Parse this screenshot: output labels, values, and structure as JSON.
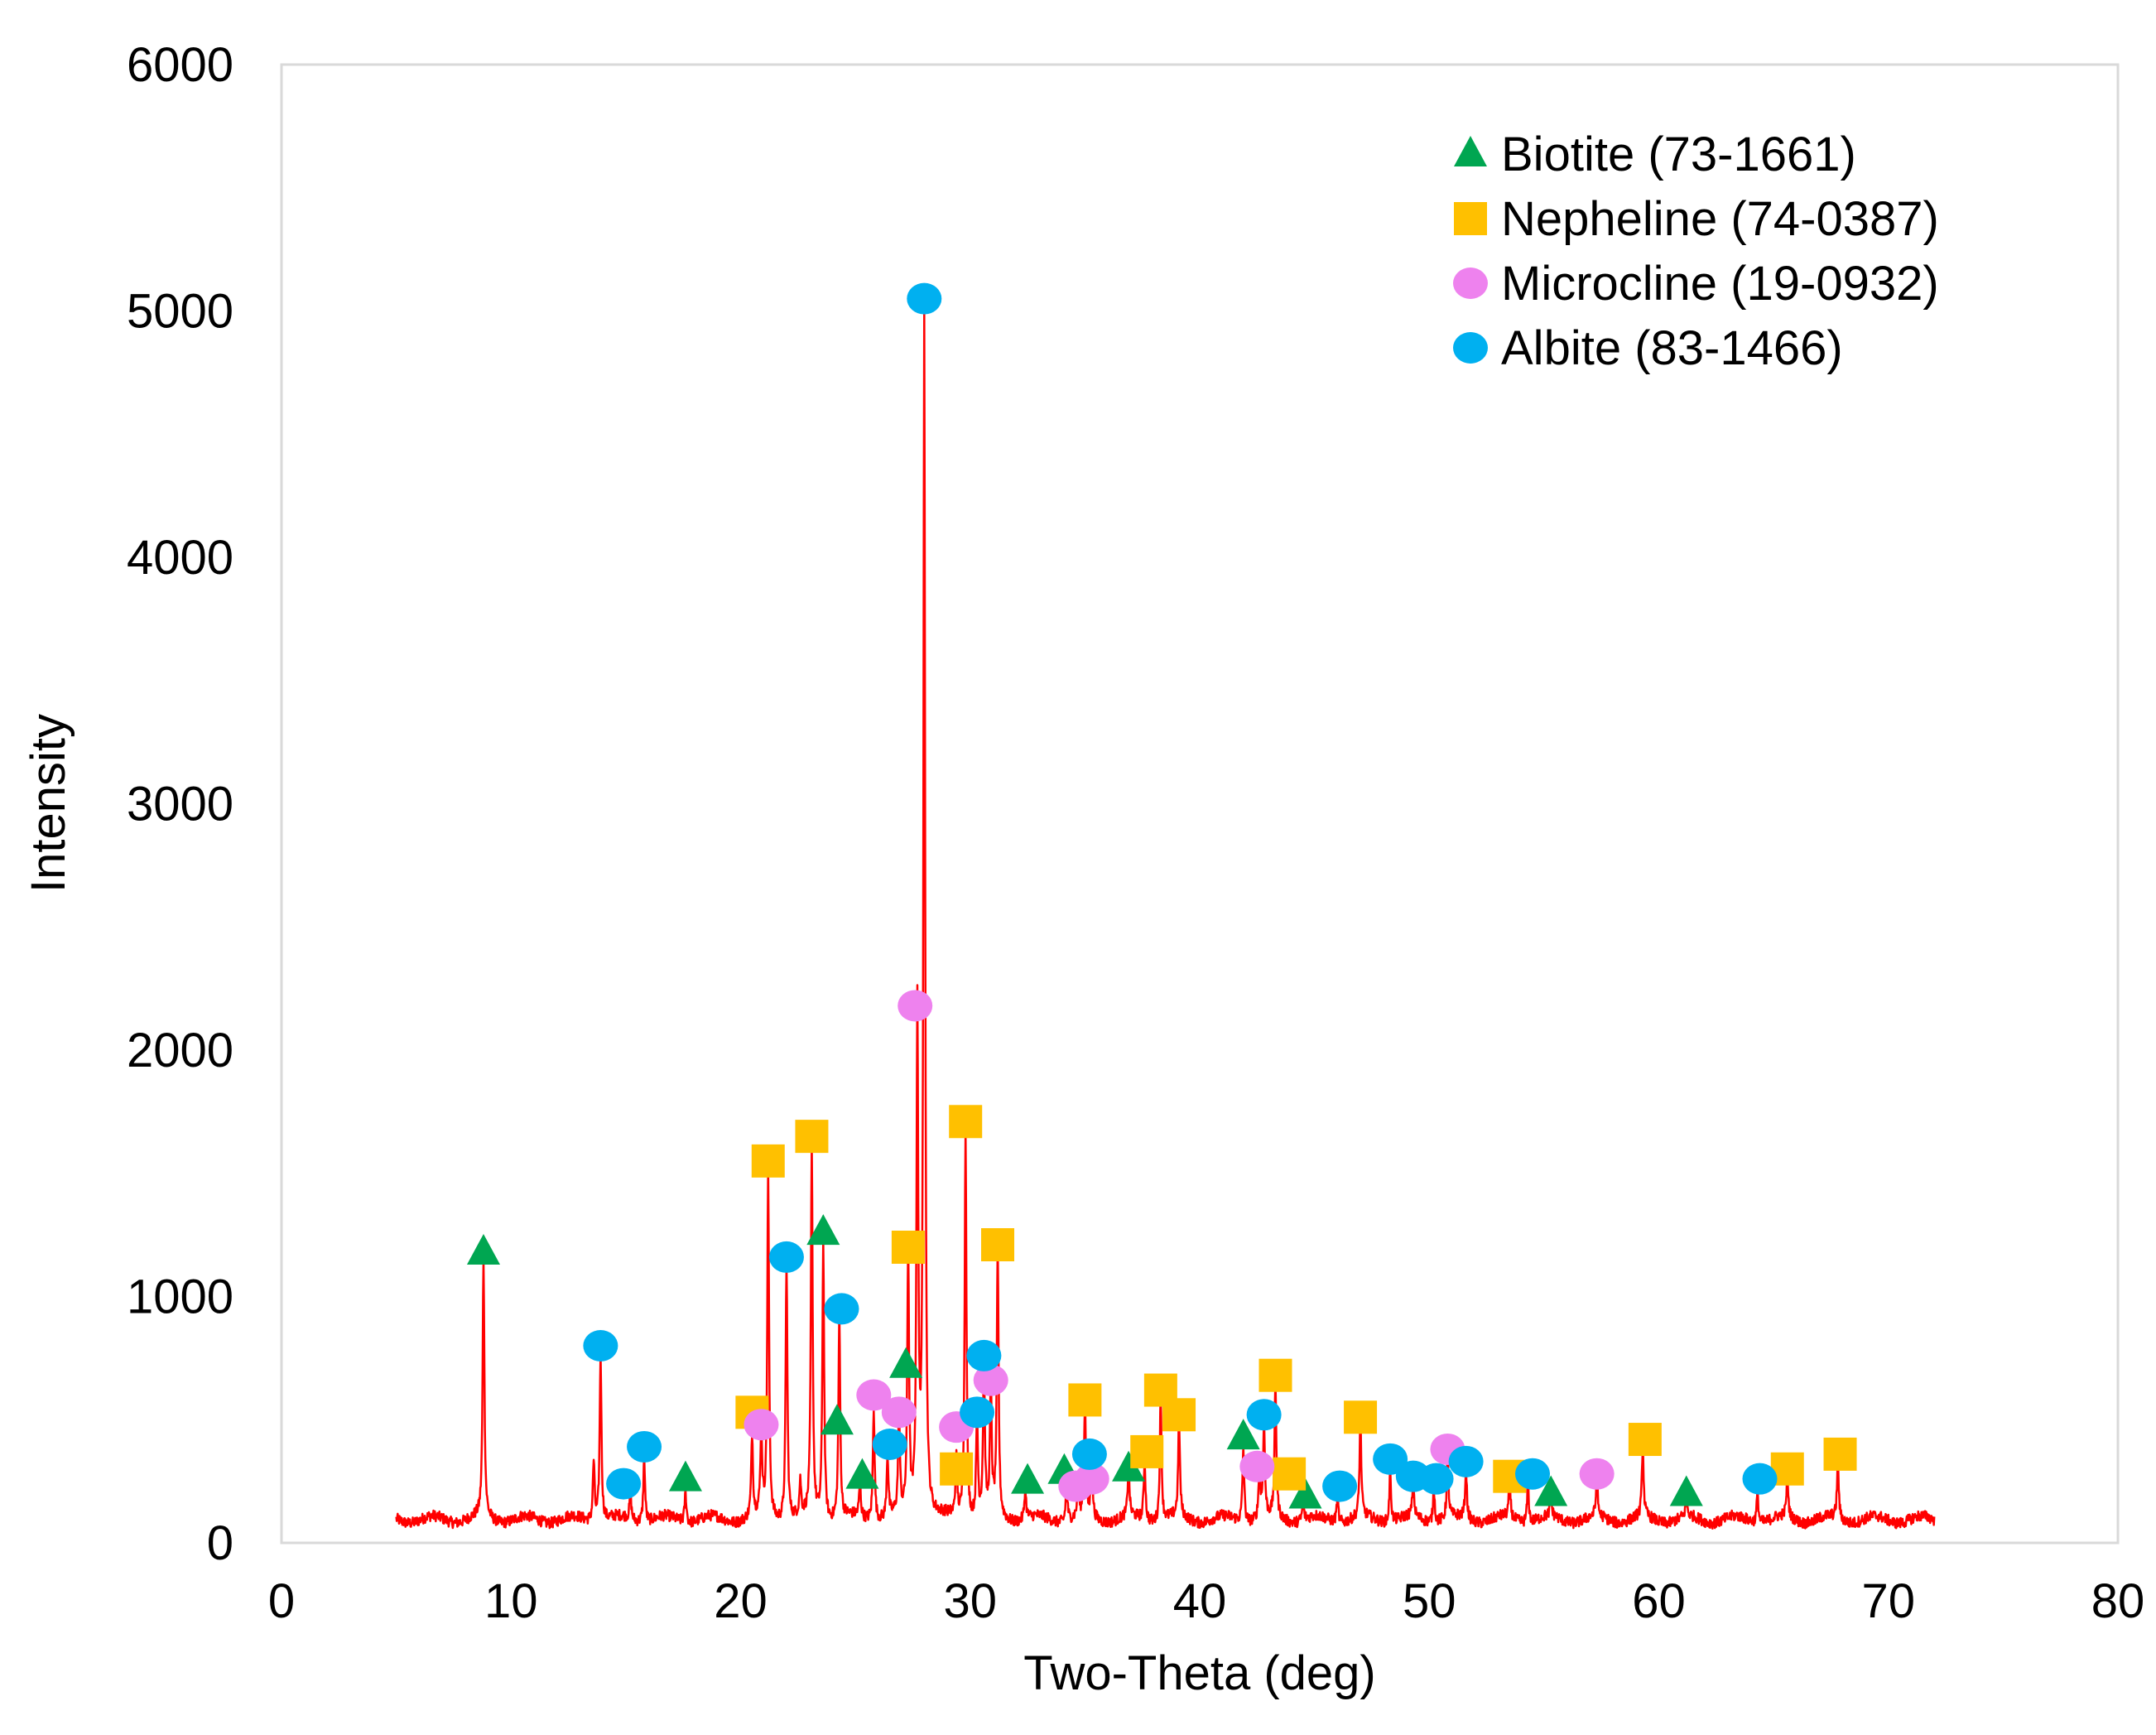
{
  "chart_data": {
    "type": "scatter",
    "title": "",
    "xlabel": "Two-Theta (deg)",
    "ylabel": "Intensity",
    "xlim": [
      0,
      80
    ],
    "ylim": [
      0,
      6000
    ],
    "xticks": [
      0,
      10,
      20,
      30,
      40,
      50,
      60,
      70,
      80
    ],
    "yticks": [
      0,
      1000,
      2000,
      3000,
      4000,
      5000,
      6000
    ],
    "grid": false,
    "legend_position": "top-right",
    "pattern": {
      "color": "#ff0000",
      "x_range": [
        5,
        72
      ],
      "baseline": 95,
      "peaks": [
        {
          "x": 8.8,
          "y": 1150
        },
        {
          "x": 13.6,
          "y": 340
        },
        {
          "x": 13.9,
          "y": 780
        },
        {
          "x": 15.2,
          "y": 200
        },
        {
          "x": 15.8,
          "y": 360
        },
        {
          "x": 17.6,
          "y": 220
        },
        {
          "x": 20.5,
          "y": 430
        },
        {
          "x": 20.9,
          "y": 450
        },
        {
          "x": 21.2,
          "y": 1500
        },
        {
          "x": 22.0,
          "y": 1150
        },
        {
          "x": 22.6,
          "y": 230
        },
        {
          "x": 23.1,
          "y": 1600
        },
        {
          "x": 23.6,
          "y": 1230
        },
        {
          "x": 24.3,
          "y": 920
        },
        {
          "x": 25.2,
          "y": 230
        },
        {
          "x": 25.8,
          "y": 560
        },
        {
          "x": 26.4,
          "y": 350
        },
        {
          "x": 26.9,
          "y": 500
        },
        {
          "x": 27.3,
          "y": 1180
        },
        {
          "x": 27.7,
          "y": 2150
        },
        {
          "x": 28.0,
          "y": 5000
        },
        {
          "x": 29.4,
          "y": 330
        },
        {
          "x": 29.8,
          "y": 1690
        },
        {
          "x": 30.3,
          "y": 500
        },
        {
          "x": 30.6,
          "y": 720
        },
        {
          "x": 30.9,
          "y": 620
        },
        {
          "x": 31.2,
          "y": 1180
        },
        {
          "x": 32.4,
          "y": 220
        },
        {
          "x": 34.2,
          "y": 250
        },
        {
          "x": 34.7,
          "y": 220
        },
        {
          "x": 35.0,
          "y": 550
        },
        {
          "x": 35.3,
          "y": 320
        },
        {
          "x": 36.9,
          "y": 300
        },
        {
          "x": 37.6,
          "y": 340
        },
        {
          "x": 38.3,
          "y": 600
        },
        {
          "x": 39.1,
          "y": 490
        },
        {
          "x": 41.9,
          "y": 400
        },
        {
          "x": 42.6,
          "y": 290
        },
        {
          "x": 42.8,
          "y": 480
        },
        {
          "x": 43.3,
          "y": 640
        },
        {
          "x": 44.5,
          "y": 170
        },
        {
          "x": 46.0,
          "y": 200
        },
        {
          "x": 47.0,
          "y": 480
        },
        {
          "x": 48.3,
          "y": 300
        },
        {
          "x": 49.3,
          "y": 240
        },
        {
          "x": 50.2,
          "y": 240
        },
        {
          "x": 50.8,
          "y": 350
        },
        {
          "x": 51.6,
          "y": 300
        },
        {
          "x": 53.5,
          "y": 240
        },
        {
          "x": 54.3,
          "y": 250
        },
        {
          "x": 55.3,
          "y": 170
        },
        {
          "x": 57.3,
          "y": 250
        },
        {
          "x": 59.3,
          "y": 380
        },
        {
          "x": 61.2,
          "y": 170
        },
        {
          "x": 64.3,
          "y": 220
        },
        {
          "x": 65.6,
          "y": 270
        },
        {
          "x": 67.8,
          "y": 330
        }
      ]
    },
    "series": [
      {
        "name": "Biotite (73-1661)",
        "marker": "triangle",
        "color": "#00a651",
        "points": [
          [
            8.8,
            1180
          ],
          [
            17.6,
            260
          ],
          [
            23.6,
            1260
          ],
          [
            24.2,
            490
          ],
          [
            25.3,
            270
          ],
          [
            27.2,
            720
          ],
          [
            32.5,
            250
          ],
          [
            34.1,
            290
          ],
          [
            36.9,
            300
          ],
          [
            41.9,
            430
          ],
          [
            44.6,
            190
          ],
          [
            55.3,
            200
          ],
          [
            61.2,
            200
          ]
        ]
      },
      {
        "name": "Nepheline (74-0387)",
        "marker": "square",
        "color": "#ffc000",
        "points": [
          [
            20.5,
            530
          ],
          [
            21.2,
            1550
          ],
          [
            23.1,
            1650
          ],
          [
            27.3,
            1200
          ],
          [
            29.4,
            300
          ],
          [
            29.8,
            1710
          ],
          [
            31.2,
            1210
          ],
          [
            35.0,
            580
          ],
          [
            37.7,
            370
          ],
          [
            38.3,
            620
          ],
          [
            39.1,
            520
          ],
          [
            43.3,
            680
          ],
          [
            43.9,
            280
          ],
          [
            47.0,
            510
          ],
          [
            53.5,
            270
          ],
          [
            59.4,
            420
          ],
          [
            65.6,
            300
          ],
          [
            67.9,
            360
          ]
        ]
      },
      {
        "name": "Microcline (19-0932)",
        "marker": "circle",
        "color": "#ee82ee",
        "points": [
          [
            20.9,
            480
          ],
          [
            25.8,
            600
          ],
          [
            26.9,
            530
          ],
          [
            27.6,
            2180
          ],
          [
            29.4,
            470
          ],
          [
            30.9,
            660
          ],
          [
            34.6,
            230
          ],
          [
            35.3,
            260
          ],
          [
            42.5,
            310
          ],
          [
            50.8,
            380
          ],
          [
            57.3,
            280
          ]
        ]
      },
      {
        "name": "Albite (83-1466)",
        "marker": "circle",
        "color": "#00b0f0",
        "points": [
          [
            13.9,
            800
          ],
          [
            14.9,
            240
          ],
          [
            15.8,
            390
          ],
          [
            22.0,
            1160
          ],
          [
            24.4,
            950
          ],
          [
            26.5,
            400
          ],
          [
            28.0,
            5050
          ],
          [
            30.3,
            530
          ],
          [
            30.6,
            760
          ],
          [
            35.2,
            360
          ],
          [
            42.8,
            520
          ],
          [
            46.1,
            230
          ],
          [
            48.3,
            340
          ],
          [
            49.3,
            270
          ],
          [
            50.3,
            260
          ],
          [
            51.6,
            330
          ],
          [
            54.5,
            280
          ],
          [
            64.4,
            260
          ]
        ]
      }
    ]
  }
}
